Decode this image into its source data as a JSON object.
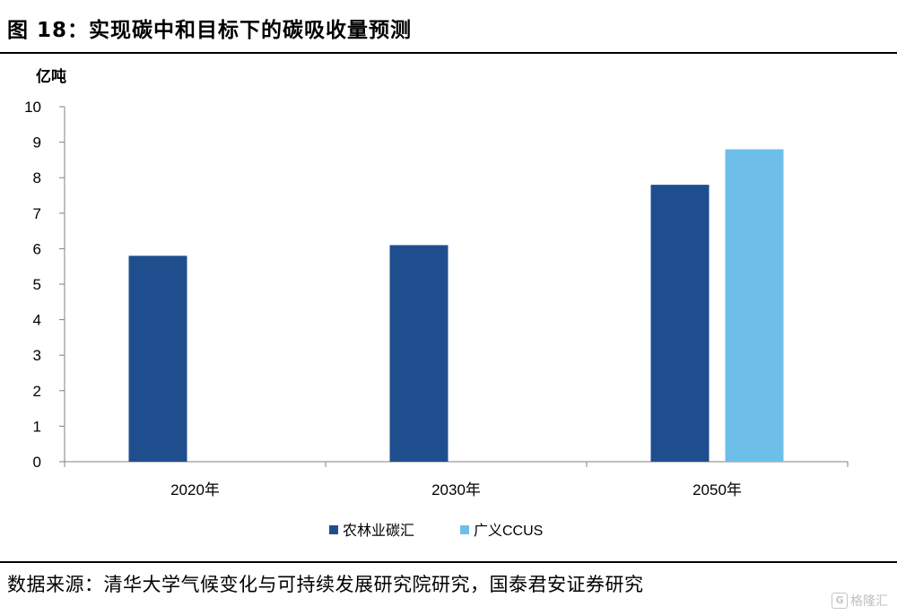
{
  "header": {
    "title": "图 18：实现碳中和目标下的碳吸收量预测"
  },
  "footer": {
    "source": "数据来源：清华大学气候变化与可持续发展研究院研究，国泰君安证券研究"
  },
  "watermark": {
    "text": "格隆汇",
    "icon": "G"
  },
  "colors": {
    "series1": "#1f4e8f",
    "series2": "#6dbfea",
    "axis": "#808080"
  },
  "chart_data": {
    "type": "bar",
    "title": "图 18：实现碳中和目标下的碳吸收量预测",
    "ylabel": "亿吨",
    "xlabel": "",
    "ylim": [
      0,
      10
    ],
    "yticks": [
      "0",
      "1",
      "2",
      "3",
      "4",
      "5",
      "6",
      "7",
      "8",
      "9",
      "10"
    ],
    "categories": [
      "2020年",
      "2030年",
      "2050年"
    ],
    "series": [
      {
        "name": "农林业碳汇",
        "values": [
          5.8,
          6.1,
          7.8
        ]
      },
      {
        "name": "广义CCUS",
        "values": [
          null,
          null,
          8.8
        ]
      }
    ],
    "legend": "bottom",
    "grid": false
  }
}
